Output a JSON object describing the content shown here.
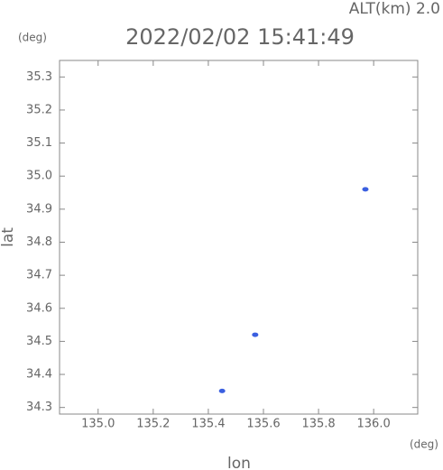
{
  "chart_data": {
    "type": "scatter",
    "title": "2022/02/02 15:41:49",
    "annotation": "ALT(km) 2.0",
    "y_unit": "(deg)",
    "x_unit": "(deg)",
    "xlabel": "lon",
    "ylabel": "lat",
    "x": [
      135.97,
      135.57,
      135.45
    ],
    "values": [
      34.96,
      34.52,
      34.35
    ],
    "color": "#3a5fe0",
    "xlim": [
      134.86,
      136.16
    ],
    "ylim": [
      34.28,
      35.35
    ],
    "xticks": [
      {
        "value": 135,
        "label": "135.0"
      },
      135.2,
      135.4,
      135.6,
      135.8,
      {
        "value": 136,
        "label": "136.0"
      }
    ],
    "yticks": [
      34.3,
      34.4,
      34.5,
      34.6,
      34.7,
      34.8,
      34.9,
      {
        "value": 35,
        "label": "35.0"
      },
      35.1,
      35.2,
      35.3
    ]
  }
}
